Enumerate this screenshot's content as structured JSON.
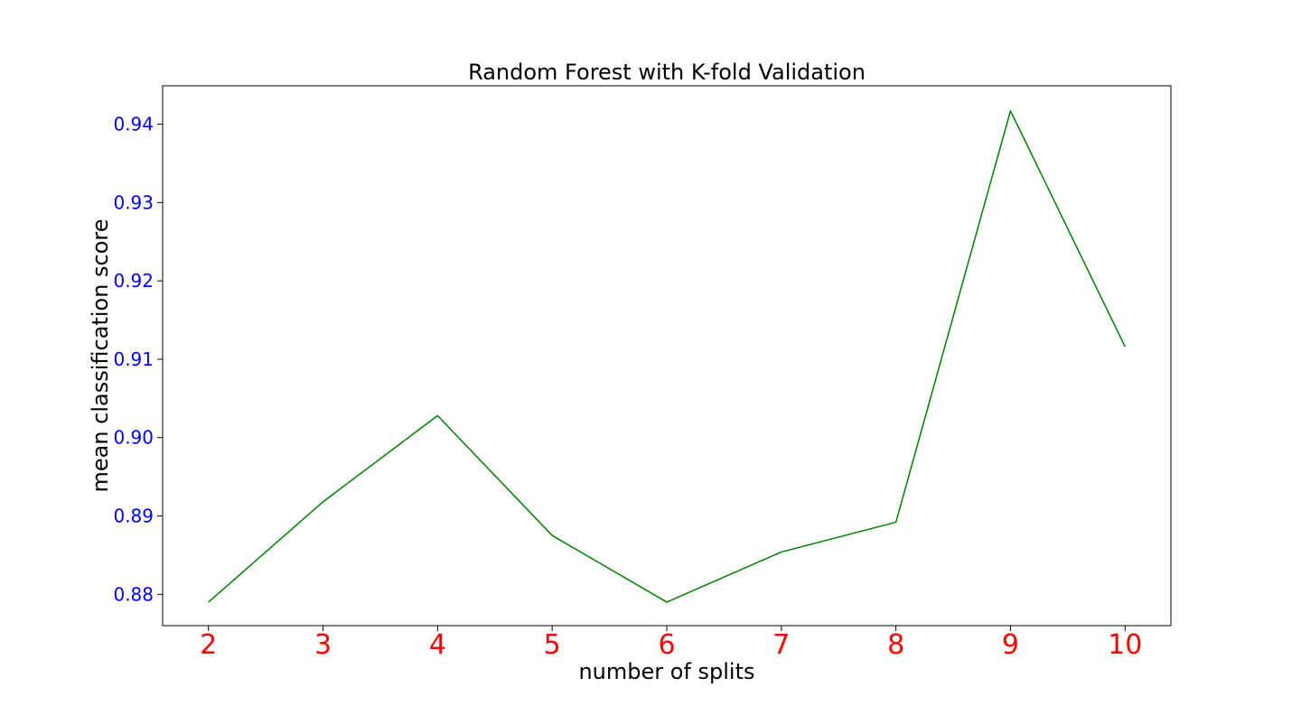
{
  "chart_data": {
    "type": "line",
    "title": "Random Forest with K-fold Validation",
    "xlabel": "number of splits",
    "ylabel": "mean classification score",
    "x": [
      2,
      3,
      4,
      5,
      6,
      7,
      8,
      9,
      10
    ],
    "series": [
      {
        "values": [
          0.879,
          0.8918,
          0.9028,
          0.8875,
          0.879,
          0.8854,
          0.8892,
          0.9417,
          0.9116
        ],
        "color": "#008000"
      }
    ],
    "x_ticks": [
      "2",
      "3",
      "4",
      "5",
      "6",
      "7",
      "8",
      "9",
      "10"
    ],
    "y_ticks": [
      "0.88",
      "0.89",
      "0.90",
      "0.91",
      "0.92",
      "0.93",
      "0.94"
    ],
    "xlim": [
      1.6,
      10.4
    ],
    "ylim": [
      0.876,
      0.9449
    ],
    "xtick_color": "#ff0000",
    "ytick_color": "#0000ff",
    "grid": false,
    "legend": "none"
  }
}
